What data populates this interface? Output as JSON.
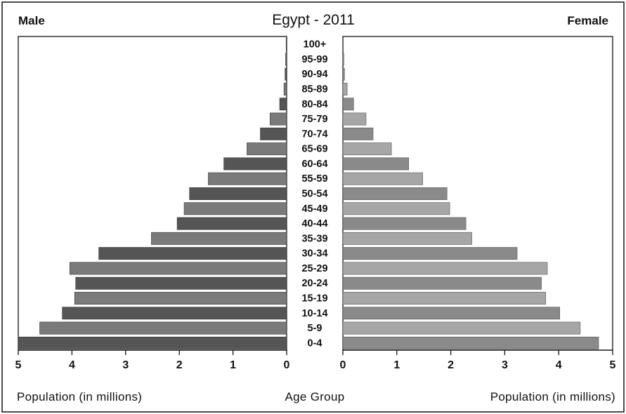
{
  "chart_data": {
    "type": "bar",
    "title": "Egypt - 2011",
    "left_label": "Male",
    "right_label": "Female",
    "center_label": "Age Group",
    "xlabel_left": "Population (in millions)",
    "xlabel_right": "Population (in millions)",
    "xlim": [
      0,
      5
    ],
    "xticks": [
      "0",
      "1",
      "2",
      "3",
      "4",
      "5"
    ],
    "grid": false,
    "categories": [
      "100+",
      "95-99",
      "90-94",
      "85-89",
      "80-84",
      "75-79",
      "70-74",
      "65-69",
      "60-64",
      "55-59",
      "50-54",
      "45-49",
      "40-44",
      "35-39",
      "30-34",
      "25-29",
      "20-24",
      "15-19",
      "10-14",
      "5-9",
      "0-4"
    ],
    "series": [
      {
        "name": "Male",
        "values": [
          0.01,
          0.02,
          0.03,
          0.05,
          0.13,
          0.31,
          0.49,
          0.74,
          1.17,
          1.46,
          1.81,
          1.91,
          2.04,
          2.52,
          3.5,
          4.04,
          3.93,
          3.95,
          4.18,
          4.6,
          5.0
        ]
      },
      {
        "name": "Female",
        "values": [
          0.01,
          0.02,
          0.03,
          0.08,
          0.2,
          0.43,
          0.56,
          0.9,
          1.22,
          1.48,
          1.93,
          1.98,
          2.28,
          2.39,
          3.23,
          3.79,
          3.68,
          3.76,
          4.02,
          4.4,
          4.74
        ]
      }
    ],
    "colors": {
      "dark": "#555555",
      "light": "#9e9e9e",
      "light_female": "#a6a6a6",
      "dark_female": "#8a8a8a",
      "frame": "#111111"
    }
  }
}
